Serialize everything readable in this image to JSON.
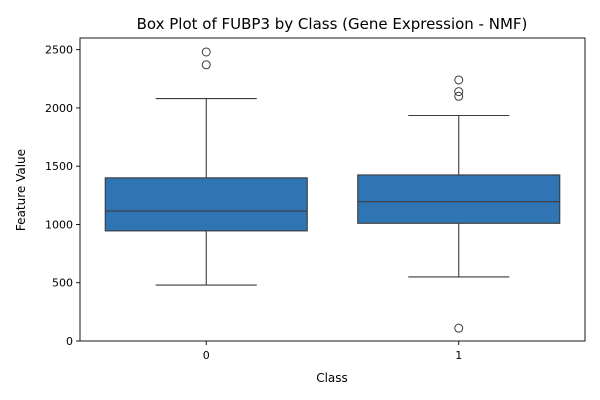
{
  "chart_data": {
    "type": "box",
    "title": "Box Plot of FUBP3 by Class (Gene Expression - NMF)",
    "xlabel": "Class",
    "ylabel": "Feature Value",
    "categories": [
      "0",
      "1"
    ],
    "ylim": [
      0,
      2600
    ],
    "yticks": [
      0,
      500,
      1000,
      1500,
      2000,
      2500
    ],
    "grid": false,
    "legend": "none",
    "box_color": "#2f74b3",
    "line_color": "#3b3b3b",
    "boxes": [
      {
        "category": "0",
        "whisker_low": 480,
        "q1": 945,
        "median": 1115,
        "q3": 1400,
        "whisker_high": 2080,
        "outliers": [
          2370,
          2480
        ]
      },
      {
        "category": "1",
        "whisker_low": 550,
        "q1": 1010,
        "median": 1195,
        "q3": 1425,
        "whisker_high": 1935,
        "outliers": [
          110,
          2100,
          2140,
          2240
        ]
      }
    ]
  }
}
